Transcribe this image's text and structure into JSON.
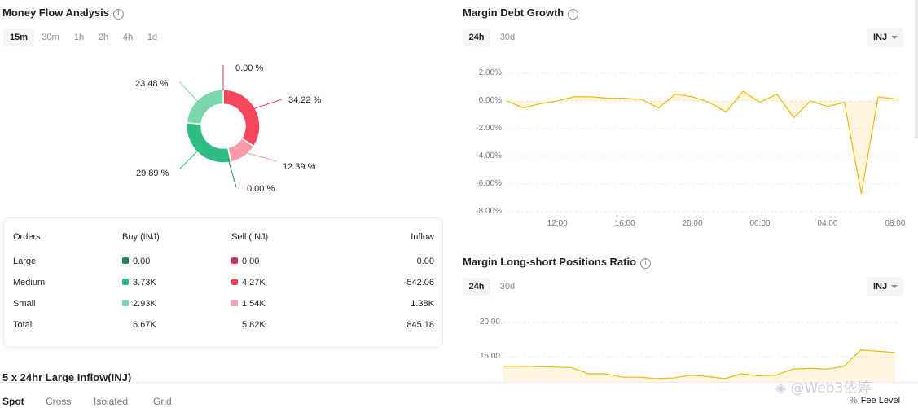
{
  "money_flow": {
    "title": "Money Flow Analysis",
    "tabs": [
      "15m",
      "30m",
      "1h",
      "2h",
      "4h",
      "1d"
    ],
    "active_tab": "15m",
    "donut_labels": [
      "0.00 %",
      "34.22 %",
      "12.39 %",
      "0.00 %",
      "29.89 %",
      "23.48 %"
    ],
    "slices": [
      {
        "name": "Large Sell",
        "value": 0.0,
        "color": "#cf304a"
      },
      {
        "name": "Medium Sell",
        "value": 34.22,
        "color": "#f6465d"
      },
      {
        "name": "Small Sell",
        "value": 12.39,
        "color": "#f89ca8"
      },
      {
        "name": "Large Buy",
        "value": 0.0,
        "color": "#1a8a64"
      },
      {
        "name": "Medium Buy",
        "value": 29.89,
        "color": "#2ebd85"
      },
      {
        "name": "Small Buy",
        "value": 23.48,
        "color": "#7ad6ad"
      }
    ],
    "table": {
      "headers": [
        "Orders",
        "Buy (INJ)",
        "Sell (INJ)",
        "Inflow"
      ],
      "rows": [
        {
          "label": "Large",
          "buy": "0.00",
          "sell": "0.00",
          "inflow": "0.00",
          "buy_color": "#1a8a64",
          "sell_color": "#cf304a"
        },
        {
          "label": "Medium",
          "buy": "3.73K",
          "sell": "4.27K",
          "inflow": "-542.06",
          "buy_color": "#2ebd85",
          "sell_color": "#f6465d"
        },
        {
          "label": "Small",
          "buy": "2.93K",
          "sell": "1.54K",
          "inflow": "1.38K",
          "buy_color": "#7ad6ad",
          "sell_color": "#f89ca8"
        },
        {
          "label": "Total",
          "buy": "6.67K",
          "sell": "5.82K",
          "inflow": "845.18"
        }
      ]
    },
    "large_inflow_title": "5 x 24hr Large Inflow(INJ)"
  },
  "margin_debt": {
    "title": "Margin Debt Growth",
    "tabs": [
      "24h",
      "30d"
    ],
    "active_tab": "24h",
    "asset": "INJ"
  },
  "long_short": {
    "title": "Margin Long-short Positions Ratio",
    "tabs": [
      "24h",
      "30d"
    ],
    "active_tab": "24h",
    "asset": "INJ"
  },
  "bottom_tabs": [
    "Spot",
    "Cross",
    "Isolated",
    "Grid"
  ],
  "bottom_active": "Spot",
  "fee_level": "Fee Level",
  "watermark": "@Web3依婷",
  "chart_data": [
    {
      "type": "area",
      "name": "margin-debt-growth",
      "x_ticks": [
        "12:00",
        "16:00",
        "20:00",
        "00:00",
        "04:00",
        "08:00"
      ],
      "y_ticks": [
        "2.00%",
        "0.00%",
        "-2.00%",
        "-4.00%",
        "-6.00%",
        "-8.00%"
      ],
      "ylim": [
        -8,
        2
      ],
      "x_range_hours": [
        9.0,
        32.2
      ],
      "x": [
        9.0,
        10.0,
        11.0,
        12.0,
        13.0,
        14.0,
        15.0,
        16.0,
        17.0,
        18.0,
        19.0,
        20.0,
        21.0,
        22.0,
        23.0,
        24.0,
        25.0,
        26.0,
        27.0,
        28.0,
        29.0,
        30.0,
        31.0,
        32.0,
        32.2
      ],
      "values": [
        0.0,
        -0.5,
        -0.2,
        0.0,
        0.3,
        0.3,
        0.2,
        0.2,
        0.1,
        -0.5,
        0.5,
        0.3,
        -0.1,
        -0.8,
        0.7,
        -0.1,
        0.5,
        -1.2,
        0.0,
        -0.4,
        -0.1,
        -6.7,
        0.3,
        0.15,
        0.15
      ],
      "color": "#f0b90b"
    },
    {
      "type": "area",
      "name": "margin-long-short-ratio",
      "y_ticks": [
        "20.00",
        "15.00"
      ],
      "ylim": [
        12,
        22
      ],
      "x_range_hours": [
        9.0,
        32.2
      ],
      "x": [
        9.0,
        10.0,
        11.0,
        12.0,
        13.0,
        14.0,
        15.0,
        16.0,
        17.0,
        18.0,
        19.0,
        20.0,
        21.0,
        22.0,
        23.0,
        24.0,
        25.0,
        26.0,
        27.0,
        28.0,
        29.0,
        30.0,
        31.0,
        32.0
      ],
      "values": [
        13.6,
        13.6,
        13.55,
        13.5,
        13.4,
        12.5,
        12.5,
        12.0,
        12.0,
        11.8,
        11.9,
        12.3,
        12.1,
        11.8,
        12.5,
        12.2,
        12.3,
        13.2,
        13.3,
        13.2,
        13.6,
        16.0,
        15.8,
        15.6
      ],
      "color": "#f0b90b"
    }
  ]
}
